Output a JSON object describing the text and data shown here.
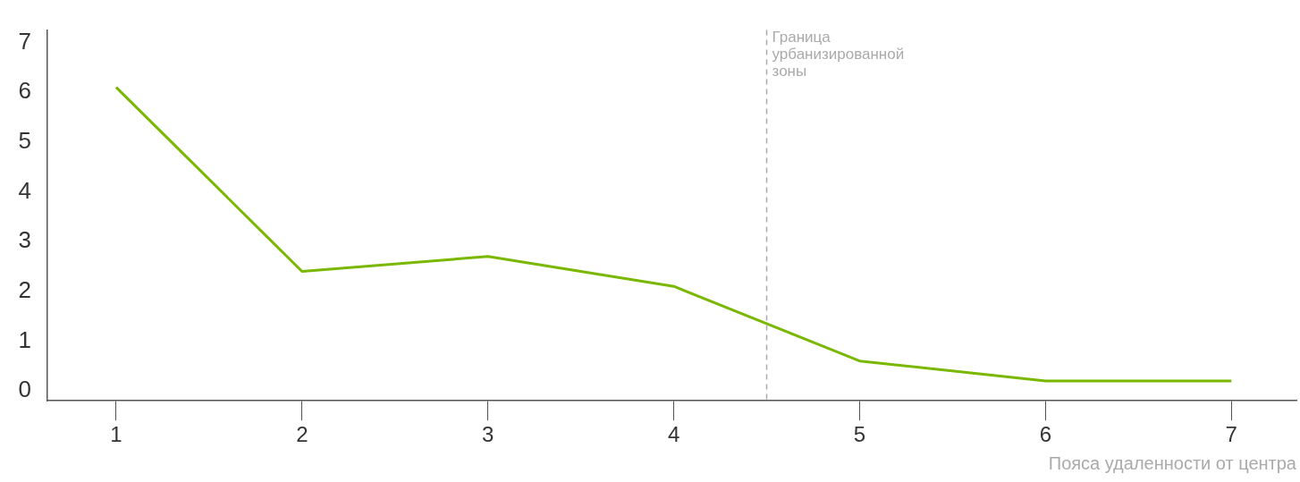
{
  "chart_data": {
    "type": "line",
    "xlabel": "Пояса удаленности от центра",
    "x": [
      1,
      2,
      3,
      4,
      5,
      6,
      7
    ],
    "series": [
      {
        "color": "#7ab800",
        "values": [
          6.1,
          2.4,
          2.7,
          2.1,
          0.6,
          0.2,
          0.2
        ]
      }
    ],
    "xlim": [
      0.63,
      7.35
    ],
    "xticks": [
      1,
      2,
      3,
      4,
      5,
      6,
      7
    ],
    "ylim": [
      -0.2,
      7.25
    ],
    "yticks": [
      0,
      1,
      2,
      3,
      4,
      5,
      6,
      7
    ],
    "ref_lines": [
      {
        "axis": "x",
        "value": 4.5,
        "label": "Граница урбанизированной зоны",
        "color": "#aaaaaa",
        "line_style": "dashed"
      }
    ],
    "grid": false,
    "legend": false,
    "marker": "none",
    "line_style": "solid"
  }
}
